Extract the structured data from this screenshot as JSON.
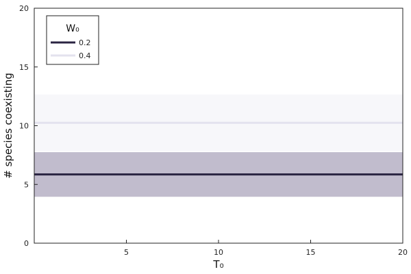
{
  "chart_data": {
    "type": "line",
    "xlabel": "T₀",
    "ylabel": "# species coexisting",
    "xlim": [
      0,
      20
    ],
    "ylim": [
      0,
      20
    ],
    "xticks": [
      5,
      10,
      15,
      20
    ],
    "yticks": [
      0,
      5,
      10,
      15,
      20
    ],
    "grid": false,
    "legend": {
      "title": "W₀",
      "placement": "top-left",
      "entries": [
        "0.2",
        "0.4"
      ]
    },
    "series": [
      {
        "name": "0.2",
        "color": "#2a2442",
        "band_color": "#c1bccd",
        "x": [
          0,
          2.2,
          4.4,
          6.7,
          8.9,
          11.1,
          13.3,
          15.6,
          17.8,
          20
        ],
        "y": [
          5.85,
          5.85,
          5.85,
          5.85,
          5.85,
          5.85,
          5.85,
          5.85,
          5.85,
          5.85
        ],
        "band_low": [
          3.95,
          3.95,
          3.95,
          3.95,
          3.95,
          3.95,
          3.95,
          3.95,
          3.95,
          3.95
        ],
        "band_high": [
          7.75,
          7.75,
          7.75,
          7.75,
          7.75,
          7.75,
          7.75,
          7.75,
          7.75,
          7.75
        ]
      },
      {
        "name": "0.4",
        "color": "#e3e2ee",
        "band_color": "#f7f7fa",
        "x": [
          0,
          2.2,
          4.4,
          6.7,
          8.9,
          11.1,
          13.3,
          15.6,
          17.8,
          20
        ],
        "y": [
          10.25,
          10.25,
          10.25,
          10.25,
          10.25,
          10.25,
          10.25,
          10.25,
          10.25,
          10.25
        ],
        "band_low": [
          7.85,
          7.85,
          7.85,
          7.85,
          7.85,
          7.85,
          7.85,
          7.85,
          7.85,
          7.85
        ],
        "band_high": [
          12.65,
          12.65,
          12.65,
          12.65,
          12.65,
          12.65,
          12.65,
          12.65,
          12.65,
          12.65
        ]
      }
    ]
  }
}
